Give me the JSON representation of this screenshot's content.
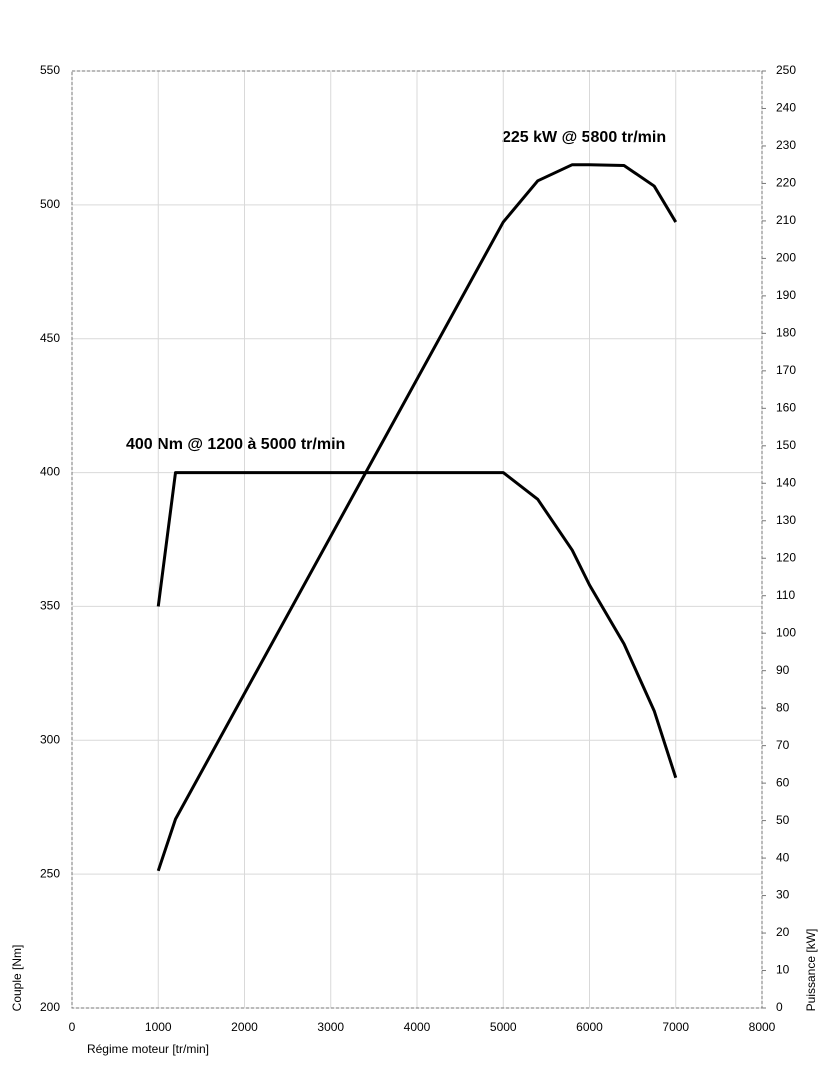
{
  "chart_data": {
    "type": "line",
    "x": [
      1000,
      1200,
      5000,
      5400,
      5800,
      6000,
      6400,
      6750,
      7000
    ],
    "series": [
      {
        "name": "Couple [Nm]",
        "color": "#000000",
        "axis": "y",
        "values": [
          350,
          400,
          400,
          390,
          371,
          358,
          336,
          311,
          286
        ]
      },
      {
        "name": "Puissance [kW]",
        "color": "#000000",
        "axis": "y2",
        "values": [
          36.6,
          50.4,
          209.7,
          220.7,
          225,
          225,
          224.8,
          219.3,
          209.7
        ]
      }
    ],
    "xlabel": "Régime moteur [tr/min]",
    "ylabel": "Couple [Nm]",
    "y2label": "Puissance [kW]",
    "annotations": [
      "400 Nm @ 1200 à 5000 tr/min",
      "225 kW @ 5800 tr/min"
    ],
    "xlim": [
      0,
      8000
    ],
    "xticks": [
      0,
      1000,
      2000,
      3000,
      4000,
      5000,
      6000,
      7000,
      8000
    ],
    "ylim": [
      200,
      550
    ],
    "yticks": [
      200,
      250,
      300,
      350,
      400,
      450,
      500,
      550
    ],
    "y2lim": [
      0,
      250
    ],
    "y2ticks": [
      0,
      10,
      20,
      30,
      40,
      50,
      60,
      70,
      80,
      90,
      100,
      110,
      120,
      130,
      140,
      150,
      160,
      170,
      180,
      190,
      200,
      210,
      220,
      230,
      240,
      250
    ],
    "grid": true
  }
}
